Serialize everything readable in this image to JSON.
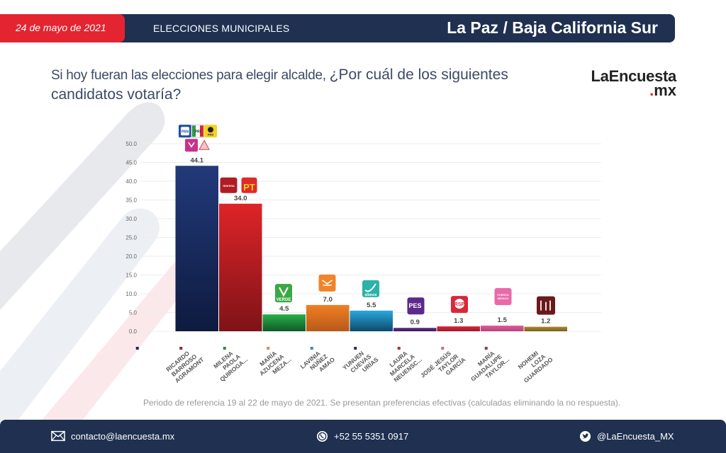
{
  "header": {
    "date": "24 de mayo de 2021",
    "section": "ELECCIONES MUNICIPALES",
    "location": "La Paz / Baja California Sur"
  },
  "question": {
    "part1": "Si hoy fueran las elecciones para elegir alcalde, ",
    "part2": "¿Por cuál de los siguientes candidatos votaría?"
  },
  "brand": {
    "name": "LaEncuesta",
    "dot": ".",
    "tld": "mx"
  },
  "footnote": "Periodo de referencia 19 al 22 de mayo de 2021. Se presentan preferencias efectivas (calculadas eliminando la no respuesta).",
  "footer": {
    "email": "contacto@laencuesta.mx",
    "phone": "+52 55 5351 0917",
    "twitter": "@LaEncuesta_MX"
  },
  "colors": {
    "navy": "#1f3050",
    "red": "#e42430"
  },
  "chart_data": {
    "type": "bar",
    "title": "Si hoy fueran las elecciones para elegir alcalde, ¿Por cuál de los siguientes candidatos votaría?",
    "xlabel": "",
    "ylabel": "",
    "ylim": [
      0,
      50
    ],
    "yticks": [
      "0.0",
      "5.0",
      "10.0",
      "15.0",
      "20.0",
      "25.0",
      "30.0",
      "35.0",
      "40.0",
      "45.0",
      "50.0"
    ],
    "grid": true,
    "legend": "none",
    "categories": [
      [
        "RICARDO",
        "BARROSO",
        "AGRAMONT"
      ],
      [
        "MILENA",
        "PAOLA",
        "QUIROGA..."
      ],
      [
        "MARÍA",
        "AZUCENA",
        "MEZA..."
      ],
      [
        "LAVINIA",
        "NÚÑEZ",
        "AMAO"
      ],
      [
        "YUNUEN",
        "CUEVAS",
        "URÍAS"
      ],
      [
        "LAURA",
        "MARCELA",
        "NEUENSC..."
      ],
      [
        "JOSÉ JESÚS",
        "TAYLOR",
        "GARCÍA"
      ],
      [
        "MARÍA",
        "GUADALUPE",
        "TAYLOR..."
      ],
      [
        "NOHEMI",
        "LOZA",
        "GUARDADO"
      ]
    ],
    "values": [
      44.1,
      34.0,
      4.5,
      7.0,
      5.5,
      0.9,
      1.3,
      1.5,
      1.2
    ],
    "value_labels": [
      "44.1",
      "34.0",
      "4.5",
      "7.0",
      "5.5",
      "0.9",
      "1.3",
      "1.5",
      "1.2"
    ],
    "bar_colors": [
      [
        "#223a7a",
        "#0e1a3f"
      ],
      [
        "#de2428",
        "#7e1318"
      ],
      [
        "#2aae4a",
        "#0f5a26"
      ],
      [
        "#f07f22",
        "#b75a1c"
      ],
      [
        "#29a8de",
        "#0d4a6a"
      ],
      [
        "#5b2a86",
        "#3e1c5e"
      ],
      [
        "#d6283a",
        "#9a1b2a"
      ],
      [
        "#e05a9a",
        "#b8407a"
      ],
      [
        "#b08a2e",
        "#7a5e1e"
      ]
    ],
    "marker_colors": [
      "#1f2a55",
      "#a2232e",
      "#2e8a45",
      "#e08a45",
      "#2a8ccf",
      "#3a2550",
      "#a8323a",
      "#c46e9a",
      "#a8323a"
    ],
    "parties": [
      [
        "PAN",
        "PRI",
        "PRD",
        "MORENA-V",
        "PRS"
      ],
      [
        "MORENA",
        "PT"
      ],
      [
        "VERDE"
      ],
      [
        "MC"
      ],
      [
        "alianza"
      ],
      [
        "PES"
      ],
      [
        "RSP"
      ],
      [
        "FUERZA MÉXICO"
      ],
      [
        "CORRIENTE"
      ]
    ]
  }
}
